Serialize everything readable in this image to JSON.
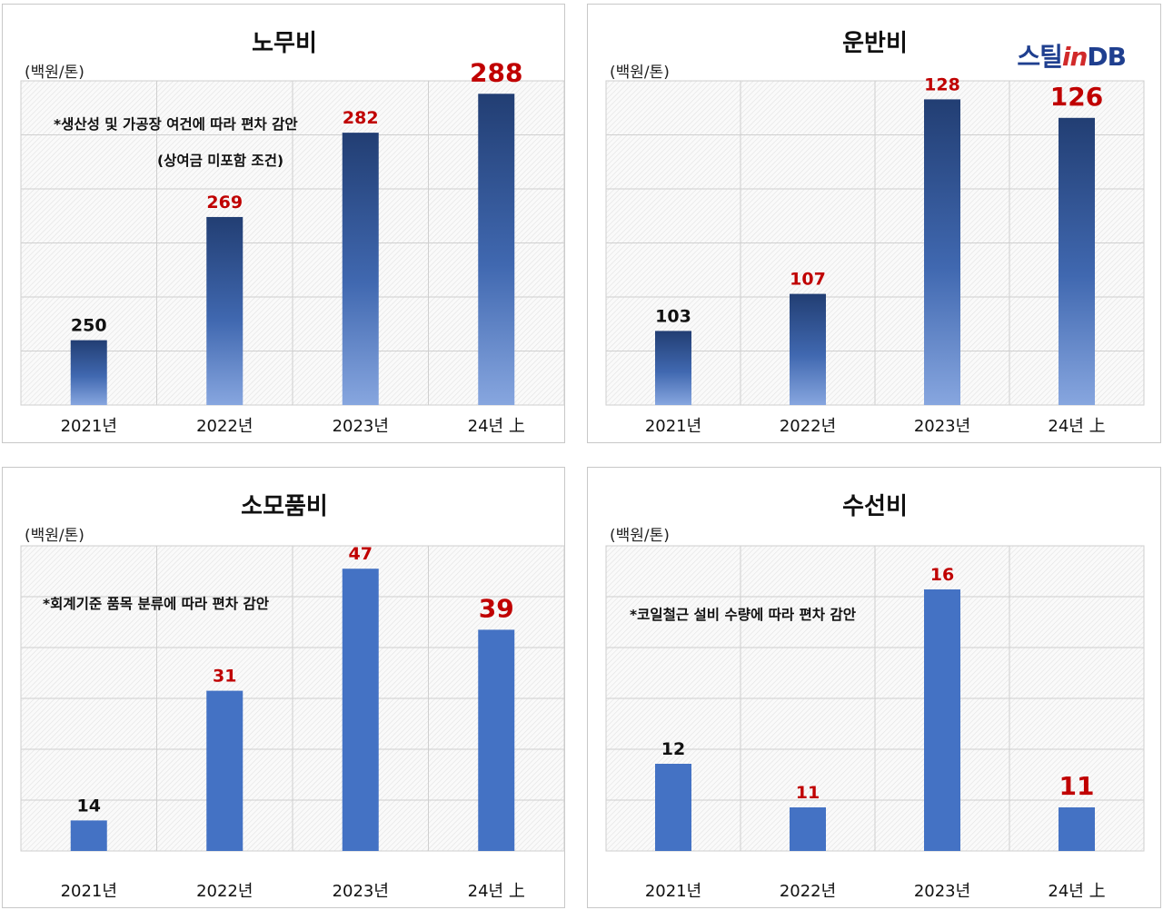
{
  "unit_label": "(백원/톤)",
  "brand": {
    "part1": "스틸",
    "part2": "in",
    "part3": "DB"
  },
  "colors": {
    "solid_bar": "#4472c4",
    "grad_top": "#223e73",
    "grad_bottom": "#87a6df",
    "label_red": "#c00000",
    "label_black": "#111111"
  },
  "chart_data": [
    {
      "type": "bar",
      "title": "노무비",
      "categories": [
        "2021년",
        "2022년",
        "2023년",
        "24년 上"
      ],
      "values": [
        250,
        269,
        282,
        288
      ],
      "label_colors": [
        "black",
        "red",
        "red",
        "red"
      ],
      "notes": [
        "*생산성 및 가공장 여건에 따라 편차 감안",
        "(상여금 미포함 조건)"
      ],
      "ylabel": "(백원/톤)",
      "ylim": [
        240,
        290
      ],
      "bar_style": "gradient",
      "grid": true
    },
    {
      "type": "bar",
      "title": "운반비",
      "categories": [
        "2021년",
        "2022년",
        "2023년",
        "24년 上"
      ],
      "values": [
        103,
        107,
        128,
        126
      ],
      "label_colors": [
        "black",
        "red",
        "red",
        "red"
      ],
      "notes": [],
      "ylabel": "(백원/톤)",
      "ylim": [
        95,
        130
      ],
      "bar_style": "gradient",
      "grid": true
    },
    {
      "type": "bar",
      "title": "소모품비",
      "categories": [
        "2021년",
        "2022년",
        "2023년",
        "24년 上"
      ],
      "values": [
        14,
        31,
        47,
        39
      ],
      "label_colors": [
        "black",
        "red",
        "red",
        "red"
      ],
      "notes": [
        "*회계기준 품목 분류에 따라 편차 감안"
      ],
      "ylabel": "(백원/톤)",
      "ylim": [
        10,
        50
      ],
      "bar_style": "solid",
      "grid": true
    },
    {
      "type": "bar",
      "title": "수선비",
      "categories": [
        "2021년",
        "2022년",
        "2023년",
        "24년 上"
      ],
      "values": [
        12,
        11,
        16,
        11
      ],
      "label_colors": [
        "black",
        "red",
        "red",
        "red"
      ],
      "notes": [
        "*코일철근 설비 수량에 따라 편차 감안"
      ],
      "ylabel": "(백원/톤)",
      "ylim": [
        10,
        17
      ],
      "bar_style": "solid",
      "grid": true
    }
  ]
}
